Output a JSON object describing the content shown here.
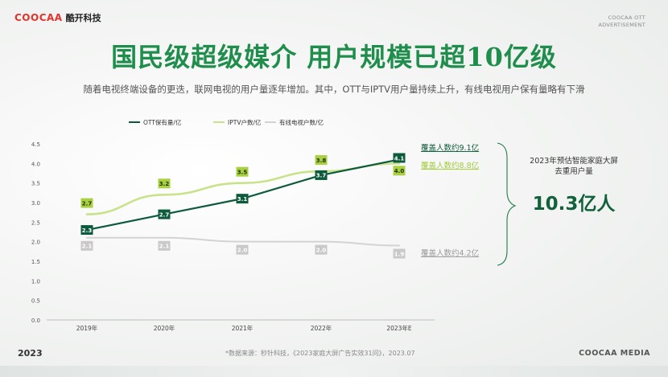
{
  "header": {
    "logo_en": "COOCAA",
    "logo_cn": "酷开科技",
    "corner_line1": "COOCAA OTT",
    "corner_line2": "ADVERTISEMENT"
  },
  "title": "国民级超级媒介 用户规模已超10亿级",
  "subtitle": "随着电视终端设备的更迭，联网电视的用户量逐年增加。其中，OTT与IPTV用户量持续上升，有线电视用户保有量略有下滑",
  "chart_data": {
    "type": "line",
    "categories": [
      "2019年",
      "2020年",
      "2021年",
      "2022年",
      "2023年E"
    ],
    "ylim": [
      0,
      4.5
    ],
    "yticks": [
      "0.0",
      "0.5",
      "1.0",
      "1.5",
      "2.0",
      "2.5",
      "3.0",
      "3.5",
      "4.0",
      "4.5"
    ],
    "series": [
      {
        "name": "OTT保有量/亿",
        "values": [
          2.3,
          2.7,
          3.1,
          3.7,
          4.1
        ],
        "labels": [
          "2.3",
          "2.7",
          "3.1",
          "3.7",
          "4.1"
        ],
        "color": "#0d5a3d",
        "end_label": "覆盖人数约9.1亿"
      },
      {
        "name": "IPTV户数/亿",
        "values": [
          2.7,
          3.2,
          3.5,
          3.8,
          4.0
        ],
        "labels": [
          "2.7",
          "3.2",
          "3.5",
          "3.8",
          "4.0"
        ],
        "color": "#c9e38a",
        "label_color": "#a3cd3a",
        "end_label": "覆盖人数约8.8亿"
      },
      {
        "name": "有线电视户数/亿",
        "values": [
          2.1,
          2.1,
          2.0,
          2.0,
          1.9
        ],
        "labels": [
          "2.1",
          "2.1",
          "2.0",
          "2.0",
          "1.9"
        ],
        "color": "#d3d3d3",
        "label_color": "#c6c6c6",
        "end_label": "覆盖人数约4.2亿"
      }
    ]
  },
  "side": {
    "title_line1": "2023年预估智能家庭大屏",
    "title_line2": "去重用户量",
    "value": "10.3亿人"
  },
  "footer": {
    "year": "2023",
    "source": "*数据来源：秒针科技，《2023家庭大屏广告实效31问》，2023.07",
    "brand": "COOCAA MEDIA"
  }
}
